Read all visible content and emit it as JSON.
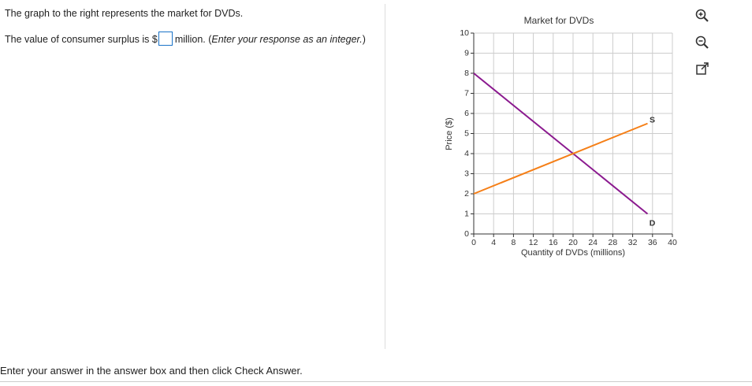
{
  "question": {
    "intro": "The graph to the right represents the market for DVDs.",
    "prompt_before": "The value of consumer surplus is $",
    "prompt_after": "million. (",
    "instruction": "Enter your response as an integer.",
    "close": ")"
  },
  "chart_data": {
    "type": "line",
    "title": "Market for DVDs",
    "x_label": "Quantity of DVDs (millions)",
    "y_label": "Price ($)",
    "x": [
      0,
      35
    ],
    "series": [
      {
        "name": "D",
        "color": "#8b1a8f",
        "values": [
          8,
          1
        ]
      },
      {
        "name": "S",
        "color": "#f57f17",
        "values": [
          2,
          5.5
        ]
      }
    ],
    "xlim": [
      0,
      40
    ],
    "xticks": [
      0,
      4,
      8,
      12,
      16,
      20,
      24,
      28,
      32,
      36,
      40
    ],
    "ylim": [
      0,
      10
    ],
    "yticks": [
      0,
      1,
      2,
      3,
      4,
      5,
      6,
      7,
      8,
      9,
      10
    ],
    "grid": true
  },
  "footer": "Enter your answer in the answer box and then click Check Answer."
}
